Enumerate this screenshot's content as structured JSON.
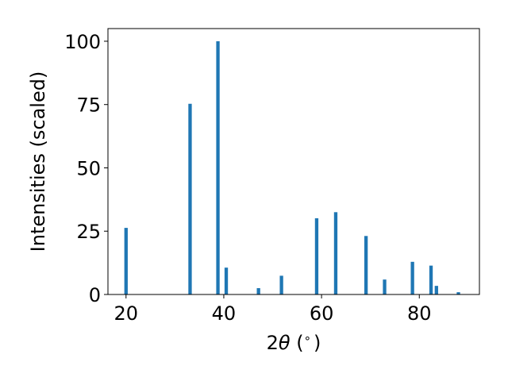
{
  "chart_data": {
    "type": "bar",
    "xlabel_prefix": "2",
    "xlabel_symbol": "θ",
    "xlabel_suffix": " (",
    "xlabel_degree": "∘",
    "xlabel_close": ")",
    "ylabel": "Intensities (scaled)",
    "xlim": [
      16.3,
      92.3
    ],
    "ylim": [
      0,
      105
    ],
    "xticks": [
      20,
      40,
      60,
      80
    ],
    "yticks": [
      0,
      25,
      50,
      75,
      100
    ],
    "grid": false,
    "color": "#1f77b4",
    "bar_width": 0.7,
    "points": [
      {
        "x": 20.0,
        "y": 26.3
      },
      {
        "x": 33.1,
        "y": 75.3
      },
      {
        "x": 38.8,
        "y": 100.0
      },
      {
        "x": 40.5,
        "y": 10.6
      },
      {
        "x": 47.1,
        "y": 2.5
      },
      {
        "x": 51.8,
        "y": 7.4
      },
      {
        "x": 59.0,
        "y": 30.1
      },
      {
        "x": 62.9,
        "y": 32.5
      },
      {
        "x": 69.1,
        "y": 23.1
      },
      {
        "x": 72.9,
        "y": 5.9
      },
      {
        "x": 78.6,
        "y": 12.9
      },
      {
        "x": 82.4,
        "y": 11.4
      },
      {
        "x": 83.5,
        "y": 3.4
      },
      {
        "x": 88.0,
        "y": 0.9
      }
    ]
  }
}
